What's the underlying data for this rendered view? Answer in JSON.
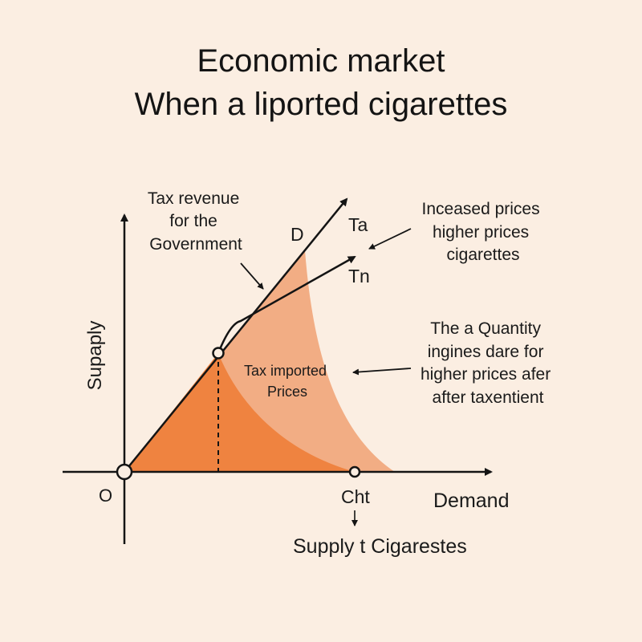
{
  "title": {
    "line1": "Economic market",
    "line2": "When a liported cigarettes"
  },
  "colors": {
    "background": "#fbeee2",
    "light_fill": "#f2ad84",
    "dark_fill": "#ef8340",
    "line": "#141414"
  },
  "labels": {
    "tax_revenue": [
      "Tax revenue",
      "for the",
      "Government"
    ],
    "curve_d": "D",
    "curve_ta": "Ta",
    "curve_tn": "Tn",
    "increased_prices": [
      "Inceased prices",
      "higher prices",
      "cigarettes"
    ],
    "quantity_note": [
      "The a Quantity",
      "ingines dare for",
      "higher prices afer",
      "after taxentient"
    ],
    "tax_imported": [
      "Tax imported",
      "Prices"
    ],
    "origin": "O",
    "y_axis": "Supaply",
    "x_axis": "Demand",
    "x_point": "Cht",
    "x_subtitle": "Supply t Cigarestes"
  }
}
